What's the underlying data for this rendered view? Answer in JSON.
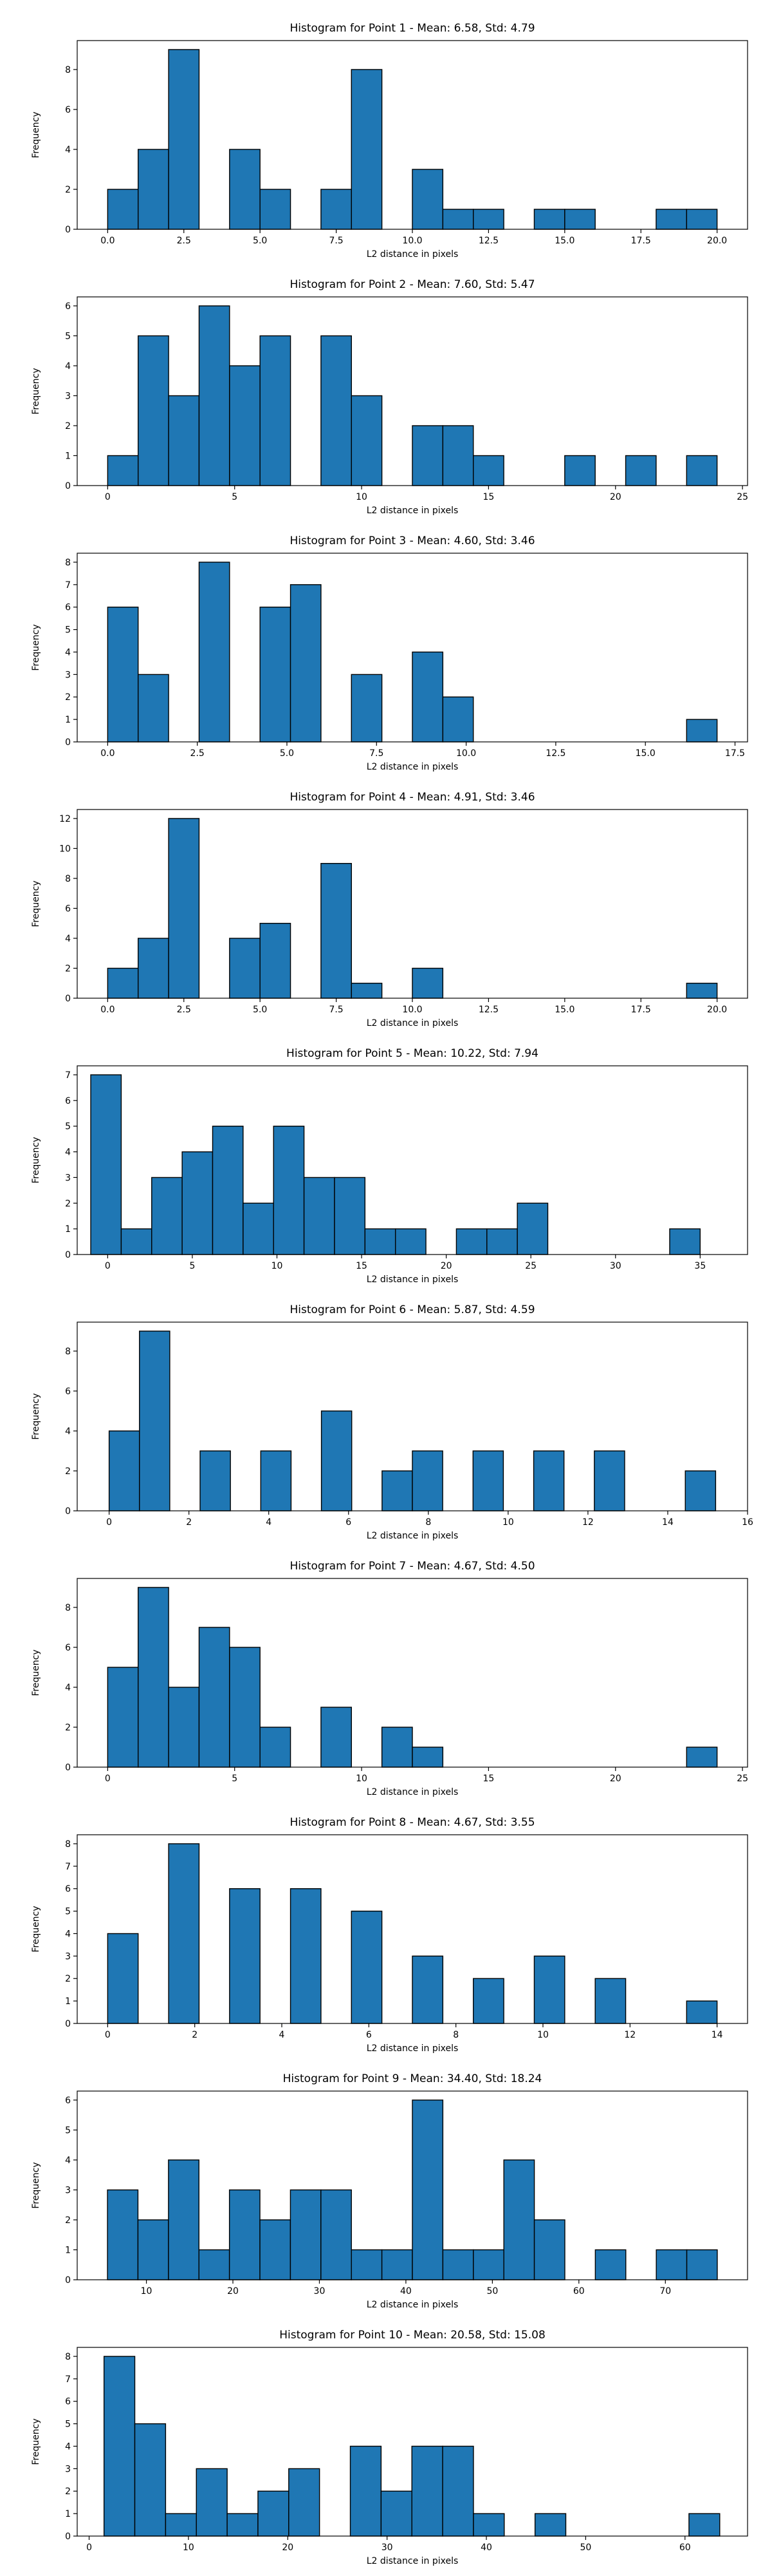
{
  "figure": {
    "bar_color": "#1f77b4",
    "edge_color": "#000000",
    "background": "#ffffff"
  },
  "chart_data": [
    {
      "type": "bar",
      "title": "Histogram for Point 1 - Mean: 6.58, Std: 4.79",
      "xlabel": "L2 distance in pixels",
      "ylabel": "Frequency",
      "xlim": [
        -1,
        21
      ],
      "ylim": [
        0,
        9.45
      ],
      "xticks": [
        0.0,
        2.5,
        5.0,
        7.5,
        10.0,
        12.5,
        15.0,
        17.5,
        20.0
      ],
      "xtick_labels": [
        "0.0",
        "2.5",
        "5.0",
        "7.5",
        "10.0",
        "12.5",
        "15.0",
        "17.5",
        "20.0"
      ],
      "yticks": [
        0,
        2,
        4,
        6,
        8
      ],
      "ytick_labels": [
        "0",
        "2",
        "4",
        "6",
        "8"
      ],
      "bin_start": 0.0,
      "bin_end": 20.0,
      "values": [
        2,
        4,
        9,
        0,
        4,
        2,
        0,
        2,
        8,
        0,
        3,
        1,
        1,
        0,
        1,
        1,
        0,
        0,
        1,
        1
      ]
    },
    {
      "type": "bar",
      "title": "Histogram for Point 2 - Mean: 7.60, Std: 5.47",
      "xlabel": "L2 distance in pixels",
      "ylabel": "Frequency",
      "xlim": [
        -1.2,
        25.2
      ],
      "ylim": [
        0,
        6.3
      ],
      "xticks": [
        0,
        5,
        10,
        15,
        20,
        25
      ],
      "xtick_labels": [
        "0",
        "5",
        "10",
        "15",
        "20",
        "25"
      ],
      "yticks": [
        0,
        1,
        2,
        3,
        4,
        5,
        6
      ],
      "ytick_labels": [
        "0",
        "1",
        "2",
        "3",
        "4",
        "5",
        "6"
      ],
      "bin_start": 0.0,
      "bin_end": 24.0,
      "values": [
        1,
        5,
        3,
        6,
        4,
        5,
        0,
        5,
        3,
        0,
        2,
        2,
        1,
        0,
        0,
        1,
        0,
        1,
        0,
        1
      ]
    },
    {
      "type": "bar",
      "title": "Histogram for Point 3 - Mean: 4.60, Std: 3.46",
      "xlabel": "L2 distance in pixels",
      "ylabel": "Frequency",
      "xlim": [
        -0.85,
        17.85
      ],
      "ylim": [
        0,
        8.4
      ],
      "xticks": [
        0.0,
        2.5,
        5.0,
        7.5,
        10.0,
        12.5,
        15.0,
        17.5
      ],
      "xtick_labels": [
        "0.0",
        "2.5",
        "5.0",
        "7.5",
        "10.0",
        "12.5",
        "15.0",
        "17.5"
      ],
      "yticks": [
        0,
        1,
        2,
        3,
        4,
        5,
        6,
        7,
        8
      ],
      "ytick_labels": [
        "0",
        "1",
        "2",
        "3",
        "4",
        "5",
        "6",
        "7",
        "8"
      ],
      "bin_start": 0.0,
      "bin_end": 17.0,
      "values": [
        6,
        3,
        0,
        8,
        0,
        6,
        7,
        0,
        3,
        0,
        4,
        2,
        0,
        0,
        0,
        0,
        0,
        0,
        0,
        1
      ]
    },
    {
      "type": "bar",
      "title": "Histogram for Point 4 - Mean: 4.91, Std: 3.46",
      "xlabel": "L2 distance in pixels",
      "ylabel": "Frequency",
      "xlim": [
        -1,
        21
      ],
      "ylim": [
        0,
        12.6
      ],
      "xticks": [
        0.0,
        2.5,
        5.0,
        7.5,
        10.0,
        12.5,
        15.0,
        17.5,
        20.0
      ],
      "xtick_labels": [
        "0.0",
        "2.5",
        "5.0",
        "7.5",
        "10.0",
        "12.5",
        "15.0",
        "17.5",
        "20.0"
      ],
      "yticks": [
        0,
        2,
        4,
        6,
        8,
        10,
        12
      ],
      "ytick_labels": [
        "0",
        "2",
        "4",
        "6",
        "8",
        "10",
        "12"
      ],
      "bin_start": 0.0,
      "bin_end": 20.0,
      "values": [
        2,
        4,
        12,
        0,
        4,
        5,
        0,
        9,
        1,
        0,
        2,
        0,
        0,
        0,
        0,
        0,
        0,
        0,
        0,
        1
      ]
    },
    {
      "type": "bar",
      "title": "Histogram for Point 5 - Mean: 10.22, Std: 7.94",
      "xlabel": "L2 distance in pixels",
      "ylabel": "Frequency",
      "xlim": [
        -1.8,
        37.8
      ],
      "ylim": [
        0,
        7.35
      ],
      "xticks": [
        0,
        5,
        10,
        15,
        20,
        25,
        30,
        35
      ],
      "xtick_labels": [
        "0",
        "5",
        "10",
        "15",
        "20",
        "25",
        "30",
        "35"
      ],
      "yticks": [
        0,
        1,
        2,
        3,
        4,
        5,
        6,
        7
      ],
      "ytick_labels": [
        "0",
        "1",
        "2",
        "3",
        "4",
        "5",
        "6",
        "7"
      ],
      "bin_start": -1.0,
      "bin_end": 35.0,
      "values": [
        7,
        1,
        3,
        4,
        5,
        2,
        5,
        3,
        3,
        1,
        1,
        0,
        1,
        1,
        2,
        0,
        0,
        0,
        0,
        1
      ]
    },
    {
      "type": "bar",
      "title": "Histogram for Point 6 - Mean: 5.87, Std: 4.59",
      "xlabel": "L2 distance in pixels",
      "ylabel": "Frequency",
      "xlim": [
        -0.8,
        16.0
      ],
      "ylim": [
        0,
        9.45
      ],
      "xticks": [
        0,
        2,
        4,
        6,
        8,
        10,
        12,
        14,
        16
      ],
      "xtick_labels": [
        "0",
        "2",
        "4",
        "6",
        "8",
        "10",
        "12",
        "14",
        "16"
      ],
      "yticks": [
        0,
        2,
        4,
        6,
        8
      ],
      "ytick_labels": [
        "0",
        "2",
        "4",
        "6",
        "8"
      ],
      "bin_start": 0.0,
      "bin_end": 15.2,
      "values": [
        4,
        9,
        0,
        3,
        0,
        3,
        0,
        5,
        0,
        2,
        3,
        0,
        3,
        0,
        3,
        0,
        3,
        0,
        0,
        2
      ]
    },
    {
      "type": "bar",
      "title": "Histogram for Point 7 - Mean: 4.67, Std: 4.50",
      "xlabel": "L2 distance in pixels",
      "ylabel": "Frequency",
      "xlim": [
        -1.2,
        25.2
      ],
      "ylim": [
        0,
        9.45
      ],
      "xticks": [
        0,
        5,
        10,
        15,
        20,
        25
      ],
      "xtick_labels": [
        "0",
        "5",
        "10",
        "15",
        "20",
        "25"
      ],
      "yticks": [
        0,
        2,
        4,
        6,
        8
      ],
      "ytick_labels": [
        "0",
        "2",
        "4",
        "6",
        "8"
      ],
      "bin_start": 0.0,
      "bin_end": 24.0,
      "values": [
        5,
        9,
        4,
        7,
        6,
        2,
        0,
        3,
        0,
        2,
        1,
        0,
        0,
        0,
        0,
        0,
        0,
        0,
        0,
        1
      ]
    },
    {
      "type": "bar",
      "title": "Histogram for Point 8 - Mean: 4.67, Std: 3.55",
      "xlabel": "L2 distance in pixels",
      "ylabel": "Frequency",
      "xlim": [
        -0.7,
        14.7
      ],
      "ylim": [
        0,
        8.4
      ],
      "xticks": [
        0,
        2,
        4,
        6,
        8,
        10,
        12,
        14
      ],
      "xtick_labels": [
        "0",
        "2",
        "4",
        "6",
        "8",
        "10",
        "12",
        "14"
      ],
      "yticks": [
        0,
        1,
        2,
        3,
        4,
        5,
        6,
        7,
        8
      ],
      "ytick_labels": [
        "0",
        "1",
        "2",
        "3",
        "4",
        "5",
        "6",
        "7",
        "8"
      ],
      "bin_start": 0.0,
      "bin_end": 14.0,
      "values": [
        4,
        0,
        8,
        0,
        6,
        0,
        6,
        0,
        5,
        0,
        3,
        0,
        2,
        0,
        3,
        0,
        2,
        0,
        0,
        1
      ]
    },
    {
      "type": "bar",
      "title": "Histogram for Point 9 - Mean: 34.40, Std: 18.24",
      "xlabel": "L2 distance in pixels",
      "ylabel": "Frequency",
      "xlim": [
        2.0,
        79.5
      ],
      "ylim": [
        0,
        6.3
      ],
      "xticks": [
        10,
        20,
        30,
        40,
        50,
        60,
        70
      ],
      "xtick_labels": [
        "10",
        "20",
        "30",
        "40",
        "50",
        "60",
        "70"
      ],
      "yticks": [
        0,
        1,
        2,
        3,
        4,
        5,
        6
      ],
      "ytick_labels": [
        "0",
        "1",
        "2",
        "3",
        "4",
        "5",
        "6"
      ],
      "bin_start": 5.5,
      "bin_end": 76.0,
      "values": [
        3,
        2,
        4,
        1,
        3,
        2,
        3,
        3,
        1,
        1,
        6,
        1,
        1,
        4,
        2,
        0,
        1,
        0,
        1,
        1
      ]
    },
    {
      "type": "bar",
      "title": "Histogram for Point 10 - Mean: 20.58, Std: 15.08",
      "xlabel": "L2 distance in pixels",
      "ylabel": "Frequency",
      "xlim": [
        -1.2,
        66.3
      ],
      "ylim": [
        0,
        8.4
      ],
      "xticks": [
        0,
        10,
        20,
        30,
        40,
        50,
        60
      ],
      "xtick_labels": [
        "0",
        "10",
        "20",
        "30",
        "40",
        "50",
        "60"
      ],
      "yticks": [
        0,
        1,
        2,
        3,
        4,
        5,
        6,
        7,
        8
      ],
      "ytick_labels": [
        "0",
        "1",
        "2",
        "3",
        "4",
        "5",
        "6",
        "7",
        "8"
      ],
      "bin_start": 1.5,
      "bin_end": 63.5,
      "values": [
        8,
        5,
        1,
        3,
        1,
        2,
        3,
        0,
        4,
        2,
        4,
        4,
        1,
        0,
        1,
        0,
        0,
        0,
        0,
        1
      ]
    }
  ]
}
